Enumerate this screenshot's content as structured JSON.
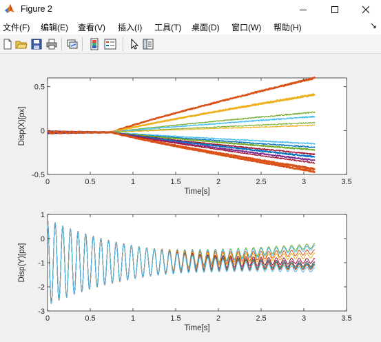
{
  "window": {
    "title": "Figure 2",
    "app_icon": "matlab-logo-icon",
    "controls": [
      "minimize-icon",
      "maximize-icon",
      "close-icon"
    ]
  },
  "menu": {
    "items": [
      "文件(F)",
      "编辑(E)",
      "查看(V)",
      "插入(I)",
      "工具(T)",
      "桌面(D)",
      "窗口(W)",
      "帮助(H)"
    ],
    "overflow_icon": "dock-arrow-icon"
  },
  "toolbar": {
    "icons": [
      "new-figure-icon",
      "open-file-icon",
      "save-icon",
      "print-icon",
      "link-plot-icon",
      "insert-colorbar-icon",
      "insert-legend-icon",
      "edit-plot-arrow-icon",
      "property-inspector-icon"
    ]
  },
  "colors": [
    "#0072bd",
    "#d95319",
    "#edb120",
    "#7e2f8e",
    "#77ac30",
    "#4dbeee",
    "#a2142f"
  ],
  "chart_data": [
    {
      "type": "line",
      "title": "",
      "xlabel": "Time[s]",
      "ylabel": "Disp(X)[px]",
      "xlim": [
        0,
        3.5
      ],
      "ylim": [
        -0.5,
        0.6
      ],
      "xticks": [
        "0",
        "0.5",
        "1",
        "1.5",
        "2",
        "2.5",
        "3",
        "3.5"
      ],
      "yticks": [
        "-0.5",
        "0",
        "0.5"
      ],
      "ytick_values": [
        -0.5,
        0,
        0.5
      ],
      "grid": false,
      "x_end": 3.13,
      "onset": 0.75,
      "series": [
        {
          "end": 0.6,
          "color": "#d95319",
          "width": 2.5
        },
        {
          "end": 0.41,
          "color": "#edb120",
          "width": 2.5
        },
        {
          "end": 0.21,
          "color": "#77ac30",
          "width": 1.2
        },
        {
          "end": 0.16,
          "color": "#4dbeee",
          "width": 1.4
        },
        {
          "end": 0.09,
          "color": "#77ac30",
          "width": 1.0
        },
        {
          "end": 0.06,
          "color": "#edb120",
          "width": 1.0
        },
        {
          "end": -0.15,
          "color": "#4dbeee",
          "width": 1.4
        },
        {
          "end": -0.19,
          "color": "#0072bd",
          "width": 1.2
        },
        {
          "end": -0.22,
          "color": "#77ac30",
          "width": 1.8
        },
        {
          "end": -0.27,
          "color": "#a2142f",
          "width": 1.4
        },
        {
          "end": -0.3,
          "color": "#0072bd",
          "width": 1.8
        },
        {
          "end": -0.34,
          "color": "#7e2f8e",
          "width": 1.8
        },
        {
          "end": -0.37,
          "color": "#a2142f",
          "width": 1.2
        },
        {
          "end": -0.44,
          "color": "#d95319",
          "width": 2.5
        },
        {
          "end": -0.47,
          "color": "#d95319",
          "width": 2.5
        }
      ]
    },
    {
      "type": "line",
      "title": "",
      "xlabel": "Time[s]",
      "ylabel": "Disp(Y)[px]",
      "xlim": [
        0,
        3.5
      ],
      "ylim": [
        -3,
        1
      ],
      "xticks": [
        "0",
        "0.5",
        "1",
        "1.5",
        "2",
        "2.5",
        "3",
        "3.5"
      ],
      "yticks": [
        "-3",
        "-2",
        "-1",
        "0",
        "1"
      ],
      "ytick_values": [
        -3,
        -2,
        -1,
        0,
        1
      ],
      "grid": false,
      "x_end": 3.13,
      "oscillation": {
        "start_value": 0.4,
        "center": -0.98,
        "initial_amplitude": 1.78,
        "frequency_hz": 11.2,
        "decay_time_s": 1.05
      },
      "series": [
        {
          "end": -0.3,
          "color": "#77ac30"
        },
        {
          "end": -0.38,
          "color": "#4dbeee"
        },
        {
          "end": -0.55,
          "color": "#d95319"
        },
        {
          "end": -0.7,
          "color": "#edb120"
        },
        {
          "end": -0.92,
          "color": "#a2142f"
        },
        {
          "end": -1.05,
          "color": "#7e2f8e"
        },
        {
          "end": -1.1,
          "color": "#77ac30"
        },
        {
          "end": -1.15,
          "color": "#0072bd"
        },
        {
          "end": -1.2,
          "color": "#d95319"
        },
        {
          "end": -1.3,
          "color": "#4dbeee"
        }
      ]
    }
  ]
}
